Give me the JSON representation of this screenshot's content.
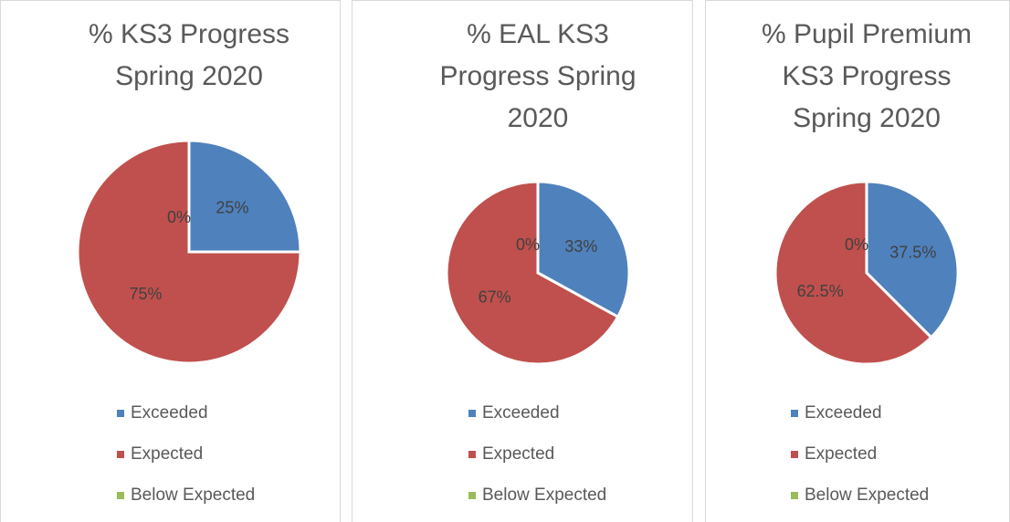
{
  "chart_data": [
    {
      "type": "pie",
      "title": "% KS3 Progress Spring 2020",
      "categories": [
        "Exceeded",
        "Expected",
        "Below Expected"
      ],
      "values": [
        25,
        75,
        0
      ],
      "value_labels": [
        "25%",
        "75%",
        "0%"
      ],
      "colors": [
        "#4f81bd",
        "#c0504d",
        "#9bbb59"
      ]
    },
    {
      "type": "pie",
      "title": "% EAL KS3 Progress Spring 2020",
      "categories": [
        "Exceeded",
        "Expected",
        "Below Expected"
      ],
      "values": [
        33,
        67,
        0
      ],
      "value_labels": [
        "33%",
        "67%",
        "0%"
      ],
      "colors": [
        "#4f81bd",
        "#c0504d",
        "#9bbb59"
      ]
    },
    {
      "type": "pie",
      "title": "% Pupil Premium KS3 Progress Spring 2020",
      "categories": [
        "Exceeded",
        "Expected",
        "Below Expected"
      ],
      "values": [
        37.5,
        62.5,
        0
      ],
      "value_labels": [
        "37.5%",
        "62.5%",
        "0%"
      ],
      "colors": [
        "#4f81bd",
        "#c0504d",
        "#9bbb59"
      ]
    }
  ]
}
